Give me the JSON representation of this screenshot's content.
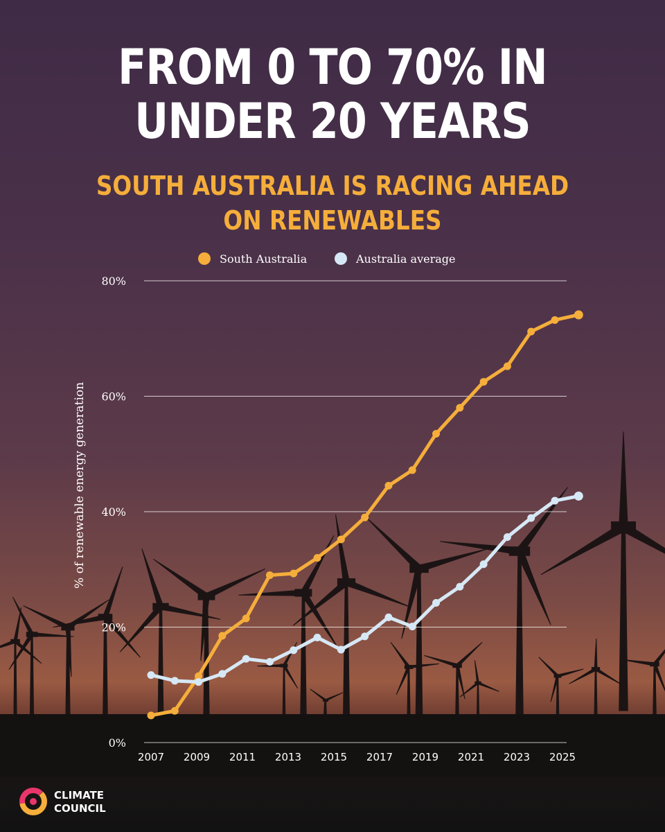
{
  "title": {
    "line1": "FROM 0 TO 70% IN",
    "line2": "UNDER 20 YEARS"
  },
  "subtitle": {
    "line1": "SOUTH AUSTRALIA IS RACING AHEAD",
    "line2": "ON RENEWABLES"
  },
  "colors": {
    "south_australia": "#f5ae3b",
    "australia_average": "#d6e8f5",
    "subtitle": "#f5ae3b"
  },
  "chart_data": {
    "type": "line",
    "ylabel": "% of renewable energy generation",
    "xlabel": "",
    "ylim": [
      0,
      80
    ],
    "yticks": [
      "0%",
      "20%",
      "40%",
      "60%",
      "80%"
    ],
    "xticks": [
      "2007",
      "2009",
      "2011",
      "2013",
      "2015",
      "2017",
      "2019",
      "2021",
      "2023",
      "2025"
    ],
    "grid": "horizontal",
    "legend": "top-center",
    "x": [
      2007,
      2008,
      2009,
      2010,
      2011,
      2012,
      2013,
      2014,
      2015,
      2016,
      2017,
      2018,
      2019,
      2020,
      2021,
      2022,
      2023,
      2024,
      2025
    ],
    "series": [
      {
        "name": "South Australia",
        "color": "#f5ae3b",
        "values": [
          4.7,
          5.5,
          11.5,
          18.5,
          21.5,
          29.0,
          29.3,
          32.0,
          35.2,
          39.0,
          44.5,
          47.2,
          53.5,
          58.0,
          62.5,
          65.2,
          71.2,
          73.2,
          74.1
        ]
      },
      {
        "name": "Australia average",
        "color": "#d6e8f5",
        "values": [
          11.7,
          10.7,
          10.5,
          11.9,
          14.5,
          14.0,
          16.0,
          18.2,
          16.1,
          18.4,
          21.7,
          20.1,
          24.2,
          27.0,
          30.9,
          35.6,
          38.9,
          41.9,
          42.7
        ]
      }
    ]
  },
  "logo": {
    "line1": "CLIMATE",
    "line2": "COUNCIL"
  }
}
